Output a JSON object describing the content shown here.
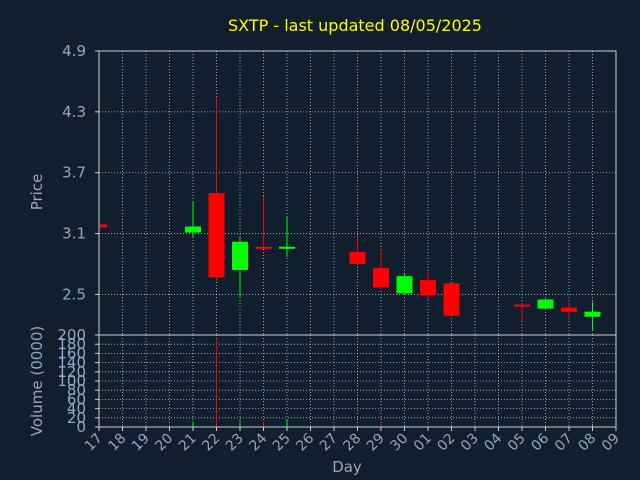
{
  "chart_data": {
    "type": "candlestick",
    "title": "SXTP - last updated 08/05/2025",
    "price_panel": {
      "ylabel": "Price",
      "ylim": [
        2.1,
        4.9
      ],
      "yticks": [
        "2.5",
        "3.1",
        "3.7",
        "4.3",
        "4.9"
      ],
      "grid": true
    },
    "volume_panel": {
      "ylabel": "Volume (0000)",
      "ylim": [
        0,
        200
      ],
      "yticks": [
        "0",
        "20",
        "40",
        "60",
        "80",
        "100",
        "120",
        "140",
        "160",
        "180",
        "200"
      ],
      "grid": true
    },
    "xlabel": "Day",
    "x_ticks": [
      "17",
      "18",
      "19",
      "20",
      "21",
      "22",
      "23",
      "24",
      "25",
      "26",
      "27",
      "28",
      "29",
      "30",
      "01",
      "02",
      "03",
      "04",
      "05",
      "06",
      "07",
      "08",
      "09"
    ],
    "candles": [
      {
        "day": "17",
        "open": 3.19,
        "high": 3.19,
        "low": 3.16,
        "close": 3.16,
        "volume": 0
      },
      {
        "day": "21",
        "open": 3.11,
        "high": 3.42,
        "low": 3.06,
        "close": 3.17,
        "volume": 12
      },
      {
        "day": "22",
        "open": 3.5,
        "high": 4.44,
        "low": 2.63,
        "close": 2.67,
        "volume": 190
      },
      {
        "day": "23",
        "open": 2.74,
        "high": 3.07,
        "low": 2.47,
        "close": 3.02,
        "volume": 14
      },
      {
        "day": "24",
        "open": 2.97,
        "high": 3.47,
        "low": 2.95,
        "close": 2.95,
        "volume": 10
      },
      {
        "day": "25",
        "open": 2.95,
        "high": 3.26,
        "low": 2.87,
        "close": 2.97,
        "volume": 16
      },
      {
        "day": "28",
        "open": 2.92,
        "high": 3.08,
        "low": 2.78,
        "close": 2.8,
        "volume": 4
      },
      {
        "day": "29",
        "open": 2.76,
        "high": 2.94,
        "low": 2.55,
        "close": 2.57,
        "volume": 6
      },
      {
        "day": "30",
        "open": 2.51,
        "high": 2.7,
        "low": 2.5,
        "close": 2.68,
        "volume": 2
      },
      {
        "day": "01",
        "open": 2.64,
        "high": 2.71,
        "low": 2.44,
        "close": 2.49,
        "volume": 4
      },
      {
        "day": "02",
        "open": 2.61,
        "high": 2.61,
        "low": 2.29,
        "close": 2.29,
        "volume": 3
      },
      {
        "day": "05",
        "open": 2.4,
        "high": 2.41,
        "low": 2.24,
        "close": 2.38,
        "volume": 2
      },
      {
        "day": "06",
        "open": 2.36,
        "high": 2.46,
        "low": 2.35,
        "close": 2.45,
        "volume": 1
      },
      {
        "day": "07",
        "open": 2.37,
        "high": 2.44,
        "low": 2.25,
        "close": 2.33,
        "volume": 2
      },
      {
        "day": "08",
        "open": 2.28,
        "high": 2.43,
        "low": 2.14,
        "close": 2.33,
        "volume": 6
      }
    ],
    "colors": {
      "background": "#111e2e",
      "title": "#ffff00",
      "axis_text": "#8fa8c8",
      "grid": "#ffffff",
      "frame": "#cfcfcf",
      "up": "#00ff00",
      "down": "#ff0000"
    }
  }
}
